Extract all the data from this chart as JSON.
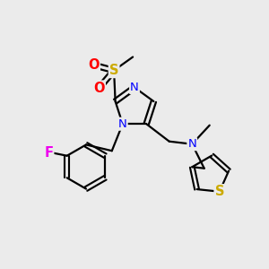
{
  "background_color": "#ebebeb",
  "atom_colors": {
    "N": "#0000ff",
    "O": "#ff0000",
    "S_sulfonyl": "#ccaa00",
    "S_thio": "#ccaa00",
    "F": "#ee00ee",
    "C": "#000000"
  },
  "bond_color": "#000000",
  "figsize": [
    3.0,
    3.0
  ],
  "dpi": 100
}
